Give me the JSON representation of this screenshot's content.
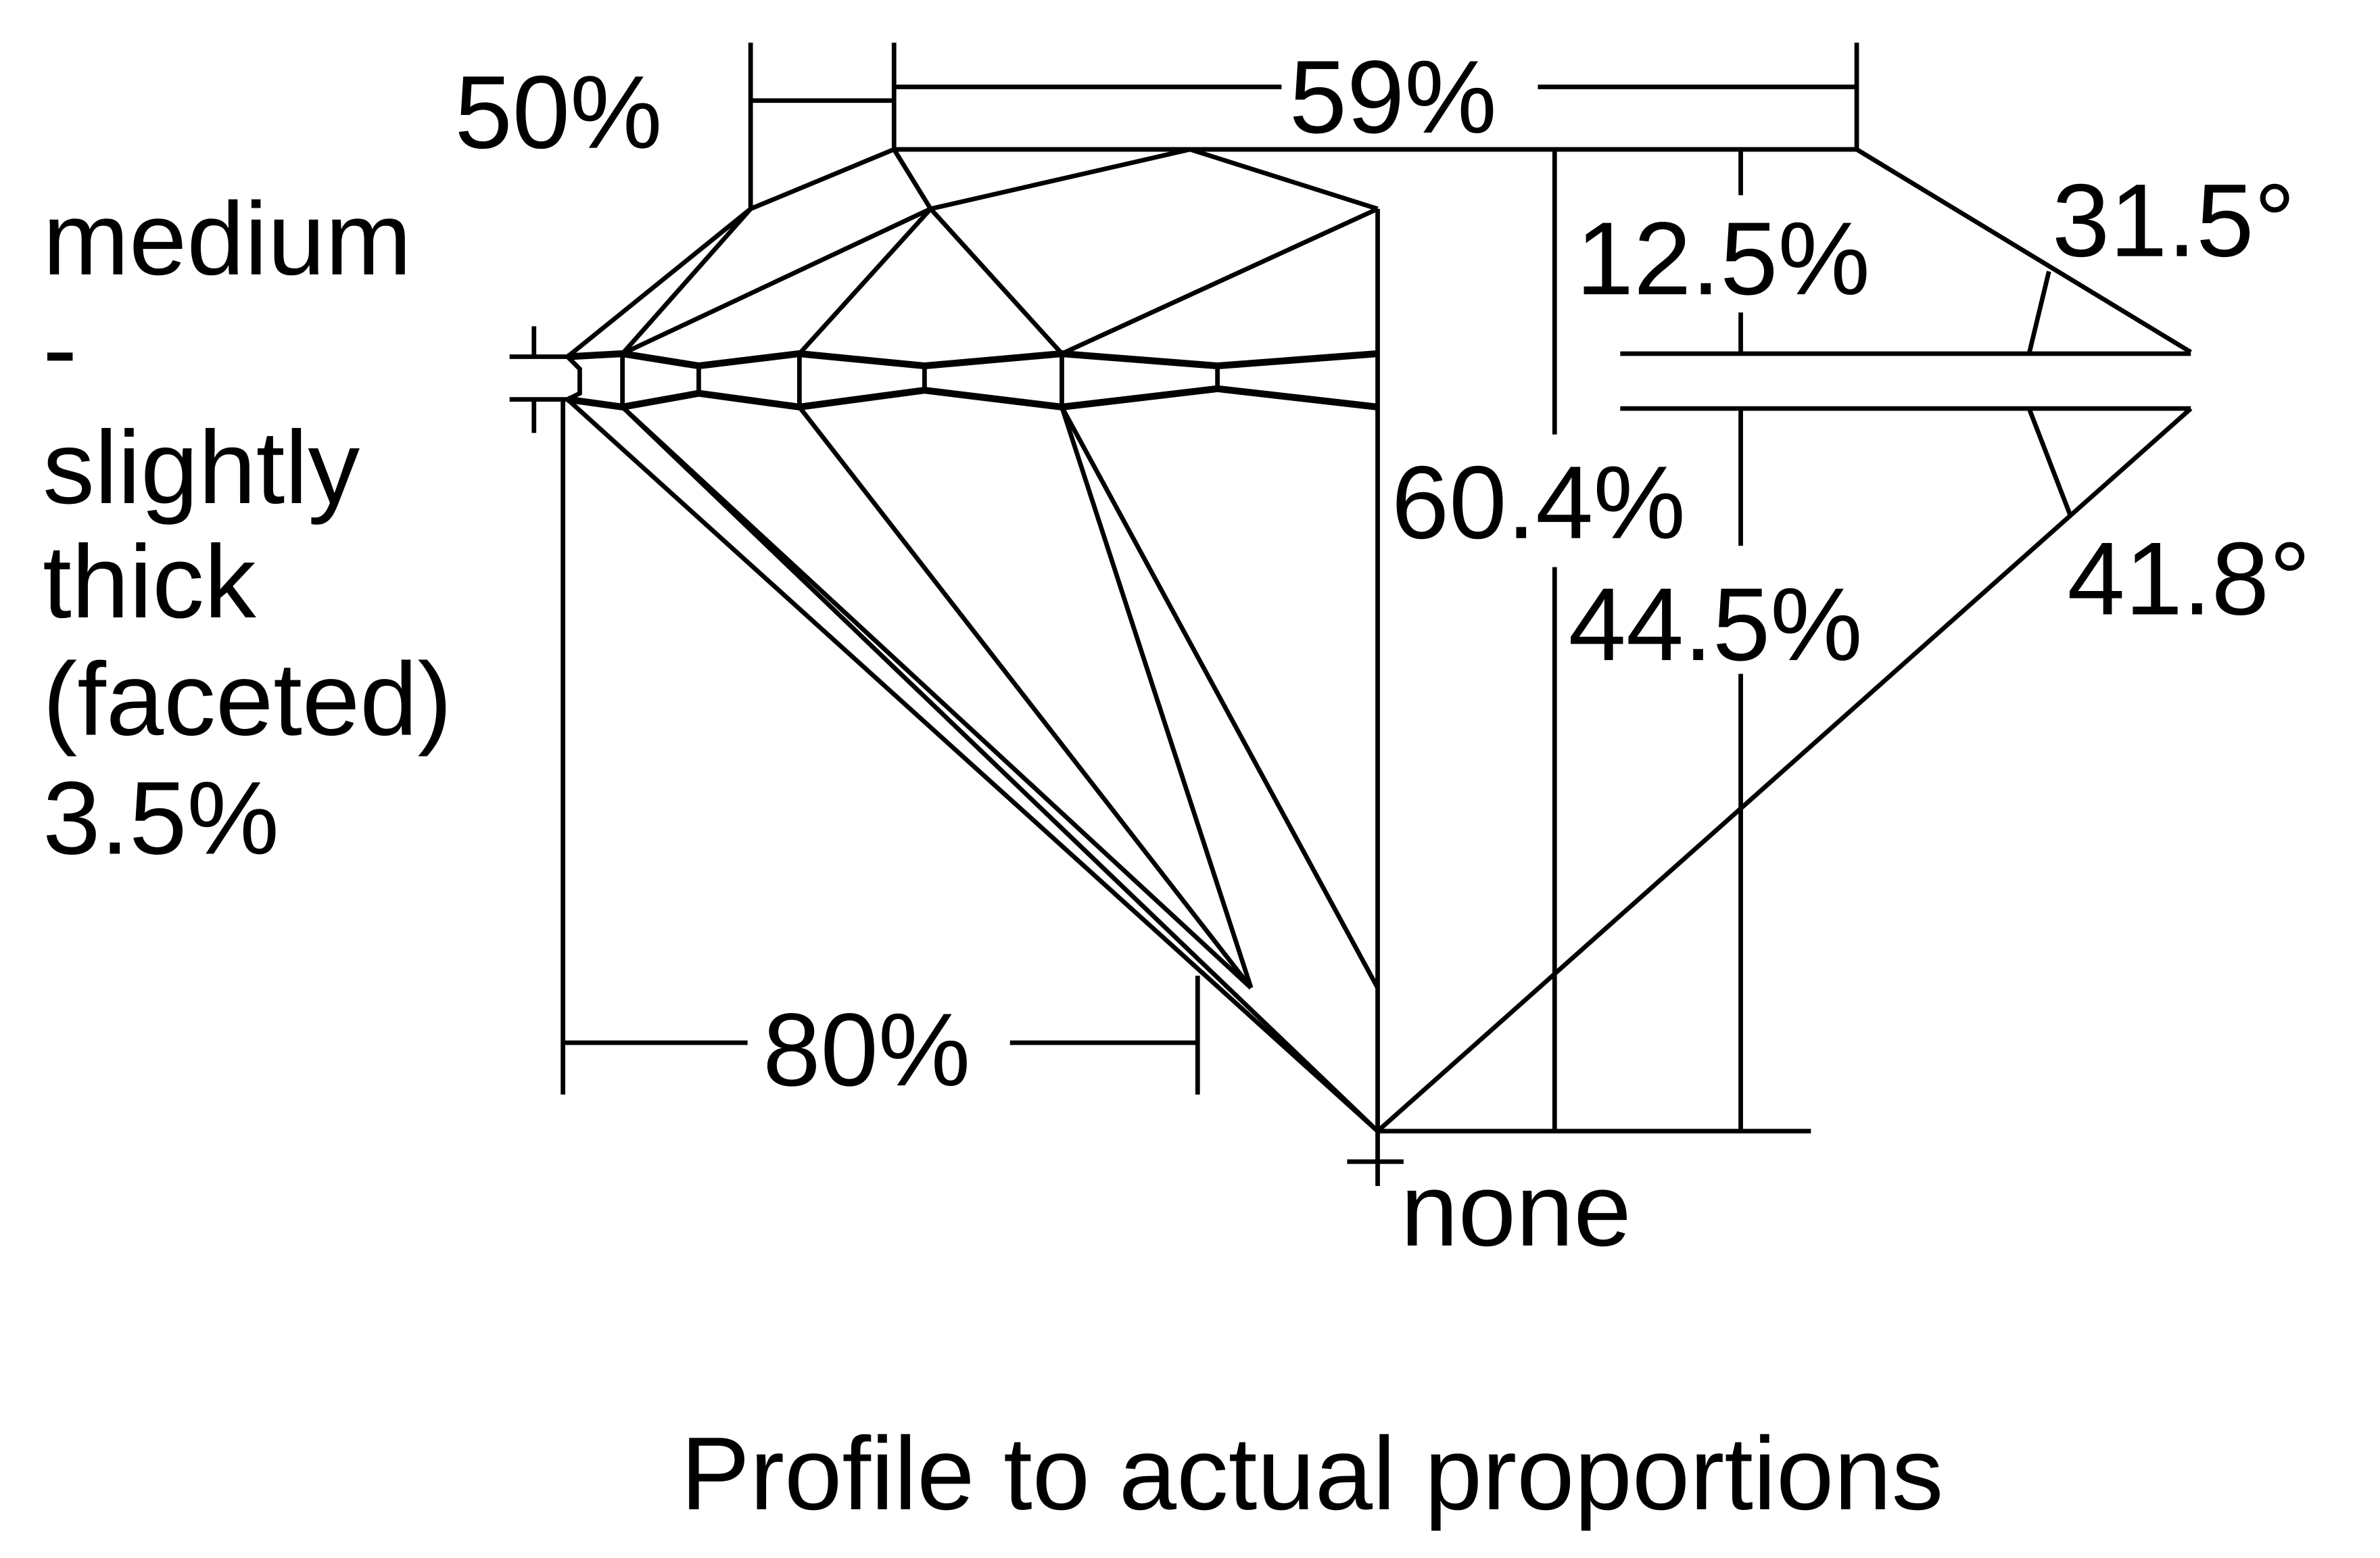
{
  "labels": {
    "girdle_lines": [
      "medium",
      "-",
      "slightly",
      "thick",
      "(faceted)",
      "3.5%"
    ],
    "star_length": "50%",
    "table": "59%",
    "crown_height": "12.5%",
    "crown_angle": "31.5°",
    "total_depth": "60.4%",
    "pavilion_depth": "44.5%",
    "pavilion_angle": "41.8°",
    "lower_half": "80%",
    "culet": "none"
  },
  "caption": "Profile to actual proportions",
  "colors": {
    "line": "#000000",
    "background": "#ffffff"
  }
}
